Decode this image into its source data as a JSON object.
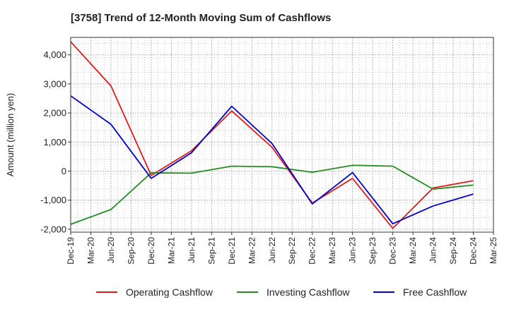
{
  "chart_data": {
    "type": "line",
    "title": "[3758]  Trend of 12-Month Moving Sum of Cashflows",
    "xlabel": "",
    "ylabel": "Amount (million yen)",
    "ylim": [
      -2100,
      4600
    ],
    "yticks": [
      -2000,
      -1000,
      0,
      1000,
      2000,
      3000,
      4000
    ],
    "ytick_labels": [
      "-2,000",
      "-1,000",
      "0",
      "1,000",
      "2,000",
      "3,000",
      "4,000"
    ],
    "x_labels": [
      "Dec-19",
      "Mar-20",
      "Jun-20",
      "Sep-20",
      "Dec-20",
      "Mar-21",
      "Jun-21",
      "Sep-21",
      "Dec-21",
      "Mar-22",
      "Jun-22",
      "Sep-22",
      "Dec-22",
      "Mar-23",
      "Jun-23",
      "Sep-23",
      "Dec-23",
      "Mar-24",
      "Jun-24",
      "Sep-24",
      "Dec-24",
      "Mar-25"
    ],
    "grid": true,
    "legend_position": "bottom",
    "series": [
      {
        "name": "Operating Cashflow",
        "color": "#e31a1c",
        "x": [
          "Dec-19",
          "Jun-20",
          "Dec-20",
          "Jun-21",
          "Dec-21",
          "Jun-22",
          "Dec-22",
          "Jun-23",
          "Dec-23",
          "Jun-24",
          "Dec-24"
        ],
        "values": [
          4450,
          2930,
          -150,
          700,
          2070,
          820,
          -1100,
          -250,
          -1970,
          -580,
          -330
        ]
      },
      {
        "name": "Investing Cashflow",
        "color": "#238b22",
        "x": [
          "Dec-19",
          "Jun-20",
          "Dec-20",
          "Jun-21",
          "Dec-21",
          "Jun-22",
          "Dec-22",
          "Jun-23",
          "Dec-23",
          "Jun-24",
          "Dec-24"
        ],
        "values": [
          -1830,
          -1320,
          -60,
          -70,
          170,
          150,
          -40,
          200,
          170,
          -620,
          -480
        ]
      },
      {
        "name": "Free Cashflow",
        "color": "#0000cc",
        "x": [
          "Dec-19",
          "Jun-20",
          "Dec-20",
          "Jun-21",
          "Dec-21",
          "Jun-22",
          "Dec-22",
          "Jun-23",
          "Dec-23",
          "Jun-24",
          "Dec-24"
        ],
        "values": [
          2590,
          1610,
          -250,
          630,
          2230,
          950,
          -1130,
          -50,
          -1810,
          -1200,
          -790
        ]
      }
    ]
  }
}
